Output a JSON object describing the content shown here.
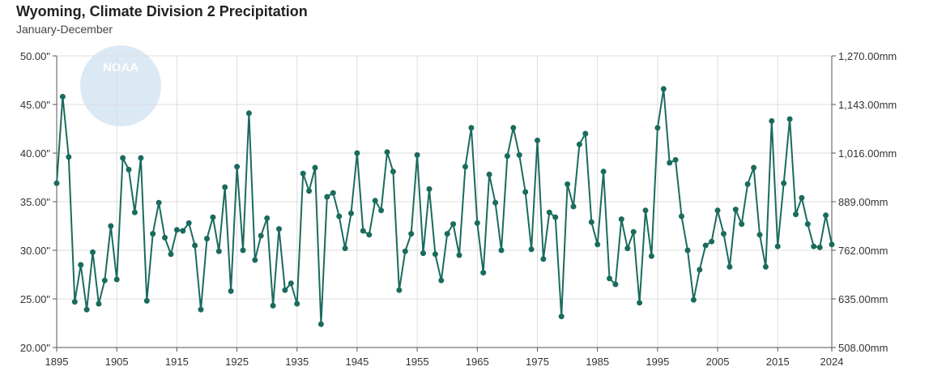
{
  "title": "Wyoming, Climate Division 2 Precipitation",
  "subtitle": "January-December",
  "logo": {
    "icon": "noaa-logo",
    "text": "NOAA"
  },
  "colors": {
    "series": "#1a6b5e",
    "grid": "#dddddd",
    "axis": "#555555",
    "logo": "#dbe9f5"
  },
  "chart_data": {
    "type": "line",
    "title": "Wyoming, Climate Division 2 Precipitation",
    "subtitle": "January-December",
    "xlim": [
      1895,
      2024
    ],
    "ylim": [
      20,
      50
    ],
    "y2lim": [
      508,
      1270
    ],
    "x_ticks": [
      "1895",
      "1905",
      "1915",
      "1925",
      "1935",
      "1945",
      "1955",
      "1965",
      "1975",
      "1985",
      "1995",
      "2005",
      "2015",
      "2024"
    ],
    "y_ticks": [
      "20.00\"",
      "25.00\"",
      "30.00\"",
      "35.00\"",
      "40.00\"",
      "45.00\"",
      "50.00\""
    ],
    "y2_ticks": [
      "508.00mm",
      "635.00mm",
      "762.00mm",
      "889.00mm",
      "1,016.00mm",
      "1,143.00mm",
      "1,270.00mm"
    ],
    "grid": true,
    "series": [
      {
        "values": [
          36.9,
          45.8,
          39.6,
          24.7,
          28.5,
          23.9,
          29.8,
          24.5,
          26.9,
          32.5,
          27.0,
          39.5,
          38.3,
          33.9,
          39.5,
          24.8,
          31.7,
          34.9,
          31.3,
          29.6,
          32.1,
          32.0,
          32.8,
          30.5,
          23.9,
          31.2,
          33.4,
          29.9,
          36.5,
          25.8,
          38.6,
          30.0,
          44.1,
          29.0,
          31.5,
          33.3,
          24.3,
          32.2,
          25.9,
          26.6,
          24.5,
          37.9,
          36.1,
          38.5,
          22.4,
          35.5,
          35.9,
          33.5,
          30.2,
          33.8,
          40.0,
          32.0,
          31.6,
          35.1,
          34.1,
          40.1,
          38.1,
          25.9,
          29.9,
          31.7,
          39.8,
          29.7,
          36.3,
          29.6,
          26.9,
          31.7,
          32.7,
          29.5,
          38.6,
          42.6,
          32.8,
          27.7,
          37.8,
          34.9,
          30.0,
          39.7,
          42.6,
          39.8,
          36.0,
          30.1,
          41.3,
          29.1,
          33.9,
          33.4,
          23.2,
          36.8,
          34.5,
          40.9,
          42.0,
          32.9,
          30.6,
          38.1,
          27.1,
          26.5,
          33.2,
          30.2,
          31.9,
          24.6,
          34.1,
          29.4,
          42.6,
          46.6,
          39.0,
          39.3,
          33.5,
          30.0,
          24.9,
          28.0,
          30.5,
          30.9,
          34.1,
          31.7,
          28.3,
          34.2,
          32.7,
          36.8,
          38.5,
          31.6,
          28.3,
          43.3,
          30.4,
          36.9,
          43.5,
          33.7,
          35.4,
          32.7,
          30.4,
          30.3,
          33.6,
          30.6
        ]
      }
    ]
  }
}
